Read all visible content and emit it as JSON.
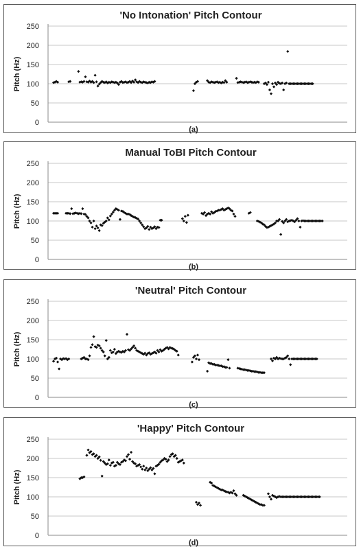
{
  "chart_data": [
    {
      "type": "scatter",
      "title": "'No Intonation' Pitch Contour",
      "ylabel": "Pitch (Hz)",
      "xlabel": "(a)",
      "ylim": [
        0,
        250
      ],
      "yticks": [
        0,
        50,
        100,
        150,
        200,
        250
      ],
      "grid": true,
      "segments": [
        [
          1,
          [
            103,
            104,
            106,
            104
          ]
        ],
        [
          12,
          [
            105,
            106
          ]
        ],
        [
          19,
          [
            132
          ]
        ],
        [
          20,
          [
            104,
            105,
            104,
            106,
            118,
            105,
            104,
            107,
            104,
            106,
            103,
            122,
            105,
            94,
            99,
            103,
            106,
            104,
            103,
            105,
            102,
            104,
            103,
            105,
            104,
            103,
            104,
            102,
            98,
            104,
            106,
            103,
            104,
            105,
            103,
            104,
            106,
            103,
            107,
            104,
            110,
            105,
            103,
            106,
            104,
            103,
            105,
            104,
            103,
            102,
            104,
            103,
            105,
            104,
            106
          ]
        ],
        [
          102,
          [
            82,
            100,
            104,
            106
          ]
        ],
        [
          112,
          [
            108,
            104,
            103,
            105,
            104,
            103,
            104,
            105,
            103,
            104,
            102,
            104,
            103,
            108,
            104
          ]
        ],
        [
          133,
          [
            114,
            103,
            104,
            105,
            104,
            103,
            104,
            105,
            103,
            104,
            105,
            104,
            103,
            104,
            103,
            105,
            104
          ]
        ],
        [
          153,
          [
            100,
            102,
            98,
            104,
            84,
            74,
            100,
            92,
            102,
            98,
            104,
            101,
            100,
            102,
            84,
            100,
            102,
            184,
            100,
            100,
            100,
            100,
            100,
            100,
            100,
            100,
            100,
            100,
            100,
            100,
            100,
            100,
            100,
            100,
            100,
            100
          ]
        ]
      ]
    },
    {
      "type": "scatter",
      "title": "Manual ToBI Pitch Contour",
      "ylabel": "Pitch (Hz)",
      "xlabel": "(b)",
      "ylim": [
        0,
        250
      ],
      "yticks": [
        0,
        50,
        100,
        150,
        200,
        250
      ],
      "grid": true,
      "segments": [
        [
          1,
          [
            120,
            120,
            120,
            120
          ]
        ],
        [
          10,
          [
            120,
            120,
            120,
            119,
            132,
            119,
            120,
            121,
            120,
            119,
            120,
            119,
            132,
            118,
            117,
            112,
            108,
            100,
            95,
            84,
            100,
            80,
            87,
            82,
            75,
            90,
            88,
            94,
            97,
            100,
            108,
            103,
            113,
            118,
            123,
            128,
            132,
            130,
            128,
            104,
            126,
            125,
            122,
            120,
            118,
            118,
            117,
            114,
            112,
            110,
            109,
            107,
            105,
            100,
            95,
            90,
            85,
            80,
            82,
            86,
            78,
            84,
            80,
            82,
            85,
            80,
            84,
            83,
            102,
            102
          ]
        ],
        [
          94,
          [
            106,
            100,
            112,
            96,
            115
          ]
        ],
        [
          108,
          [
            120,
            118,
            122,
            114,
            118,
            120,
            118,
            124,
            120,
            122,
            125,
            126,
            128,
            128,
            130,
            132,
            128,
            130,
            132,
            134,
            132,
            128,
            126,
            118,
            112
          ]
        ],
        [
          142,
          [
            120,
            122
          ]
        ],
        [
          148,
          [
            100,
            99,
            97,
            95,
            92,
            90,
            86,
            83,
            84,
            86,
            88,
            90,
            92,
            95,
            100,
            100,
            104,
            65,
            99,
            95,
            100,
            104,
            98,
            100,
            101,
            102,
            100,
            98,
            102,
            106,
            100,
            84,
            100,
            101,
            100,
            100,
            100,
            100,
            100,
            100,
            100,
            100,
            100,
            100,
            100,
            100,
            100,
            100
          ]
        ]
      ]
    },
    {
      "type": "scatter",
      "title": "'Neutral' Pitch Contour",
      "ylabel": "Pitch (Hz)",
      "xlabel": "(c)",
      "ylim": [
        0,
        250
      ],
      "yticks": [
        0,
        50,
        100,
        150,
        200,
        250
      ],
      "grid": true,
      "segments": [
        [
          1,
          [
            94,
            100,
            102,
            92,
            74,
            100,
            98,
            101,
            100,
            101,
            98,
            100
          ]
        ],
        [
          21,
          [
            100,
            102,
            104,
            100,
            100,
            98,
            108
          ]
        ],
        [
          28,
          [
            130,
            137,
            158,
            132,
            130,
            136,
            134,
            128,
            122,
            118,
            108,
            148,
            100,
            104,
            122,
            116,
            118,
            125,
            114,
            118,
            120,
            118,
            117,
            120,
            118,
            122,
            164,
            124,
            122,
            126,
            130,
            134,
            128,
            122,
            120,
            118,
            116,
            114,
            112,
            115,
            110,
            114,
            116,
            112,
            114,
            116,
            118,
            115,
            122,
            118,
            124,
            120,
            122,
            125,
            128,
            130,
            126,
            130,
            128,
            127,
            125,
            122,
            120,
            110
          ]
        ],
        [
          101,
          [
            92,
            104,
            108,
            100,
            110,
            98
          ]
        ],
        [
          112,
          [
            68,
            90,
            88,
            88,
            86,
            86,
            84,
            84,
            83,
            82,
            82,
            80,
            80,
            78,
            78,
            98,
            76
          ]
        ],
        [
          134,
          [
            76,
            75,
            74,
            73,
            72,
            72,
            71,
            70,
            70,
            69,
            68,
            68,
            67,
            67,
            66,
            65,
            65,
            64,
            64,
            64
          ]
        ],
        [
          158,
          [
            100,
            95,
            102,
            100,
            104,
            100,
            102,
            101,
            100,
            100,
            102,
            104,
            108,
            100,
            85,
            100,
            100,
            100,
            100,
            100,
            100,
            100,
            100,
            100,
            100,
            100,
            100,
            100,
            100,
            100,
            100,
            100,
            100,
            100
          ]
        ]
      ]
    },
    {
      "type": "scatter",
      "title": "'Happy' Pitch Contour",
      "ylabel": "Pitch (Hz)",
      "xlabel": "(d)",
      "ylim": [
        0,
        250
      ],
      "yticks": [
        0,
        50,
        100,
        150,
        200,
        250
      ],
      "grid": true,
      "segments": [
        [
          20,
          [
            147,
            150,
            150,
            152
          ]
        ],
        [
          25,
          [
            208,
            222,
            215,
            218,
            210,
            212,
            205,
            208,
            200,
            204,
            195,
            154,
            192,
            188,
            184,
            186,
            196,
            182,
            188,
            190,
            180,
            182,
            190,
            186,
            184,
            190,
            192,
            196,
            194,
            205,
            210,
            198,
            216,
            192,
            188,
            186,
            180,
            182,
            184,
            178,
            172,
            180,
            170,
            175,
            168,
            172,
            176,
            170,
            174,
            160,
            180,
            182,
            185,
            190,
            194,
            196,
            200,
            198,
            192,
            196,
            205,
            210,
            212,
            205,
            208,
            200,
            190,
            192,
            194,
            196,
            188
          ]
        ],
        [
          104,
          [
            86,
            80,
            84,
            78
          ]
        ],
        [
          114,
          [
            138,
            136,
            130,
            128,
            126,
            124,
            122,
            120,
            118,
            118,
            116,
            114,
            113,
            112,
            110,
            112,
            110,
            116,
            108,
            104
          ]
        ],
        [
          138,
          [
            104,
            102,
            100,
            98,
            96,
            94,
            92,
            90,
            88,
            86,
            84,
            82,
            80,
            80,
            78,
            78
          ]
        ],
        [
          156,
          [
            108,
            100,
            94,
            104,
            102,
            100,
            98,
            100,
            101,
            100,
            100,
            100,
            100,
            100,
            100,
            100,
            100,
            100,
            100,
            100,
            100,
            100,
            100,
            100,
            100,
            100,
            100,
            100,
            100,
            100,
            100,
            100,
            100,
            100,
            100,
            100,
            100,
            100
          ]
        ]
      ]
    }
  ]
}
